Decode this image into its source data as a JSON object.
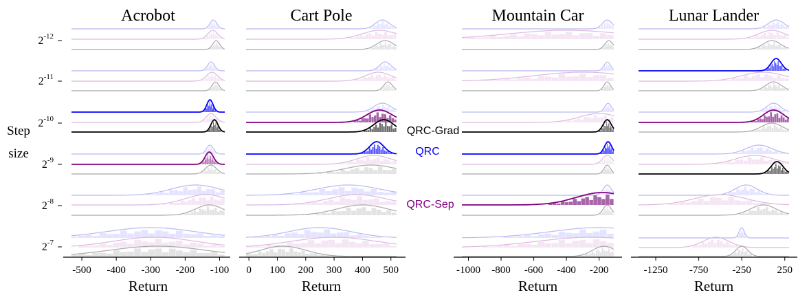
{
  "figure": {
    "ylabel_line1": "Step",
    "ylabel_line2": "size",
    "step_sizes": [
      {
        "base": "2",
        "exp": "-12",
        "value": 0.000244140625
      },
      {
        "base": "2",
        "exp": "-11",
        "value": 0.00048828125
      },
      {
        "base": "2",
        "exp": "-10",
        "value": 0.0009765625
      },
      {
        "base": "2",
        "exp": "-9",
        "value": 0.001953125
      },
      {
        "base": "2",
        "exp": "-8",
        "value": 0.00390625
      },
      {
        "base": "2",
        "exp": "-7",
        "value": 0.0078125
      }
    ],
    "colors": {
      "QRC-Grad": "#000000",
      "QRC": "#0000ff",
      "QRC-Sep": "#800080",
      "faint_QRC-Grad": "#a8a8a8",
      "faint_QRC": "#b8b8f2",
      "faint_QRC-Sep": "#ddb8dd",
      "bar_QRC-Grad": "#d7d7d7",
      "bar_QRC": "#d9d9ff",
      "bar_QRC-Sep": "#f0dcf0"
    },
    "legend": [
      {
        "label": "QRC-Grad",
        "color": "#000000"
      },
      {
        "label": "QRC",
        "color": "#0000ff"
      },
      {
        "label": "QRC-Sep",
        "color": "#800080"
      }
    ]
  },
  "chart_data": [
    {
      "type": "ridgeline",
      "title": "Acrobot",
      "xlabel": "Return",
      "xlim": [
        -530,
        -85
      ],
      "xticks": [
        -500,
        -400,
        -300,
        -200,
        -100
      ],
      "xtick_labels": [
        "-500",
        "-400",
        "-300",
        "-200",
        "-100"
      ],
      "series_order": [
        "QRC",
        "QRC-Sep",
        "QRC-Grad"
      ],
      "rows": [
        {
          "step": "2^-12",
          "best": null,
          "dist": {
            "QRC": {
              "peak": -118,
              "spread": 10
            },
            "QRC-Sep": {
              "peak": -120,
              "spread": 14
            },
            "QRC-Grad": {
              "peak": -110,
              "spread": 10
            }
          }
        },
        {
          "step": "2^-11",
          "best": null,
          "dist": {
            "QRC": {
              "peak": -125,
              "spread": 10
            },
            "QRC-Sep": {
              "peak": -122,
              "spread": 16
            },
            "QRC-Grad": {
              "peak": -112,
              "spread": 10
            }
          }
        },
        {
          "step": "2^-10",
          "best": [
            "QRC",
            "QRC-Grad"
          ],
          "dist": {
            "QRC": {
              "peak": -128,
              "spread": 9
            },
            "QRC-Sep": {
              "peak": -125,
              "spread": 14
            },
            "QRC-Grad": {
              "peak": -115,
              "spread": 10
            }
          }
        },
        {
          "step": "2^-9",
          "best": [
            "QRC-Sep"
          ],
          "dist": {
            "QRC": {
              "peak": -128,
              "spread": 10
            },
            "QRC-Sep": {
              "peak": -130,
              "spread": 12
            },
            "QRC-Grad": {
              "peak": -125,
              "spread": 16
            }
          }
        },
        {
          "step": "2^-8",
          "best": null,
          "dist": {
            "QRC": {
              "peak": -170,
              "spread": 70
            },
            "QRC-Sep": {
              "peak": -140,
              "spread": 60
            },
            "QRC-Grad": {
              "peak": -130,
              "spread": 40
            }
          }
        },
        {
          "step": "2^-7",
          "best": null,
          "dist": {
            "QRC": {
              "peak": -300,
              "spread": 130
            },
            "QRC-Sep": {
              "peak": -290,
              "spread": 120
            },
            "QRC-Grad": {
              "peak": -280,
              "spread": 140
            }
          }
        }
      ]
    },
    {
      "type": "ridgeline",
      "title": "Cart Pole",
      "xlabel": "Return",
      "xlim": [
        -10,
        520
      ],
      "xticks": [
        0,
        100,
        200,
        300,
        400,
        500
      ],
      "xtick_labels": [
        "0",
        "100",
        "200",
        "300",
        "400",
        "500"
      ],
      "series_order": [
        "QRC",
        "QRC-Sep",
        "QRC-Grad"
      ],
      "rows": [
        {
          "step": "2^-12",
          "best": null,
          "dist": {
            "QRC": {
              "peak": 470,
              "spread": 25
            },
            "QRC-Sep": {
              "peak": 460,
              "spread": 60
            },
            "QRC-Grad": {
              "peak": 480,
              "spread": 30
            }
          }
        },
        {
          "step": "2^-11",
          "best": null,
          "dist": {
            "QRC": {
              "peak": 480,
              "spread": 20
            },
            "QRC-Sep": {
              "peak": 455,
              "spread": 45
            },
            "QRC-Grad": {
              "peak": 490,
              "spread": 15
            }
          }
        },
        {
          "step": "2^-10",
          "best": [
            "QRC-Sep",
            "QRC-Grad"
          ],
          "dist": {
            "QRC": {
              "peak": 470,
              "spread": 30
            },
            "QRC-Sep": {
              "peak": 460,
              "spread": 45
            },
            "QRC-Grad": {
              "peak": 475,
              "spread": 35
            }
          }
        },
        {
          "step": "2^-9",
          "best": [
            "QRC"
          ],
          "dist": {
            "QRC": {
              "peak": 450,
              "spread": 25
            },
            "QRC-Sep": {
              "peak": 440,
              "spread": 60
            },
            "QRC-Grad": {
              "peak": 430,
              "spread": 90
            }
          }
        },
        {
          "step": "2^-8",
          "best": null,
          "dist": {
            "QRC": {
              "peak": 350,
              "spread": 110
            },
            "QRC-Sep": {
              "peak": 380,
              "spread": 100
            },
            "QRC-Grad": {
              "peak": 400,
              "spread": 90
            }
          }
        },
        {
          "step": "2^-7",
          "best": null,
          "dist": {
            "QRC": {
              "peak": 250,
              "spread": 110
            },
            "QRC-Sep": {
              "peak": 300,
              "spread": 150
            },
            "QRC-Grad": {
              "peak": 120,
              "spread": 80
            }
          }
        }
      ]
    },
    {
      "type": "ridgeline",
      "title": "Mountain Car",
      "xlabel": "Return",
      "xlim": [
        -1040,
        -110
      ],
      "xticks": [
        -1000,
        -800,
        -600,
        -400,
        -200
      ],
      "xtick_labels": [
        "-1000",
        "-800",
        "-600",
        "-400",
        "-200"
      ],
      "series_order": [
        "QRC",
        "QRC-Sep",
        "QRC-Grad"
      ],
      "rows": [
        {
          "step": "2^-12",
          "best": null,
          "dist": {
            "QRC": {
              "peak": -150,
              "spread": 30
            },
            "QRC-Sep": {
              "peak": -400,
              "spread": 350
            },
            "QRC-Grad": {
              "peak": -140,
              "spread": 25
            }
          }
        },
        {
          "step": "2^-11",
          "best": null,
          "dist": {
            "QRC": {
              "peak": -150,
              "spread": 20
            },
            "QRC-Sep": {
              "peak": -300,
              "spread": 300
            },
            "QRC-Grad": {
              "peak": -150,
              "spread": 20
            }
          }
        },
        {
          "step": "2^-10",
          "best": [
            "QRC-Grad"
          ],
          "dist": {
            "QRC": {
              "peak": -145,
              "spread": 20
            },
            "QRC-Sep": {
              "peak": -200,
              "spread": 120
            },
            "QRC-Grad": {
              "peak": -150,
              "spread": 25
            }
          }
        },
        {
          "step": "2^-9",
          "best": [
            "QRC"
          ],
          "dist": {
            "QRC": {
              "peak": -145,
              "spread": 22
            },
            "QRC-Sep": {
              "peak": -150,
              "spread": 30
            },
            "QRC-Grad": {
              "peak": -150,
              "spread": 20
            }
          }
        },
        {
          "step": "2^-8",
          "best": [
            "QRC-Sep"
          ],
          "dist": {
            "QRC": {
              "peak": -150,
              "spread": 25
            },
            "QRC-Sep": {
              "peak": -180,
              "spread": 160
            },
            "QRC-Grad": {
              "peak": -150,
              "spread": 25
            }
          }
        },
        {
          "step": "2^-7",
          "best": null,
          "dist": {
            "QRC": {
              "peak": -200,
              "spread": 300
            },
            "QRC-Sep": {
              "peak": -250,
              "spread": 330
            },
            "QRC-Grad": {
              "peak": -170,
              "spread": 70
            }
          }
        }
      ]
    },
    {
      "type": "ridgeline",
      "title": "Lunar Lander",
      "xlabel": "Return",
      "xlim": [
        -1450,
        300
      ],
      "xticks": [
        -1250,
        -750,
        -250,
        250
      ],
      "xtick_labels": [
        "-1250",
        "-750",
        "-250",
        "250"
      ],
      "series_order": [
        "QRC",
        "QRC-Sep",
        "QRC-Grad"
      ],
      "rows": [
        {
          "step": "2^-12",
          "best": null,
          "dist": {
            "QRC": {
              "peak": 150,
              "spread": 90
            },
            "QRC-Sep": {
              "peak": 100,
              "spread": 150
            },
            "QRC-Grad": {
              "peak": 100,
              "spread": 100
            }
          }
        },
        {
          "step": "2^-11",
          "best": [
            "QRC"
          ],
          "dist": {
            "QRC": {
              "peak": 150,
              "spread": 60
            },
            "QRC-Sep": {
              "peak": 0,
              "spread": 250
            },
            "QRC-Grad": {
              "peak": 120,
              "spread": 90
            }
          }
        },
        {
          "step": "2^-10",
          "best": [
            "QRC-Sep"
          ],
          "dist": {
            "QRC": {
              "peak": 120,
              "spread": 80
            },
            "QRC-Sep": {
              "peak": 120,
              "spread": 120
            },
            "QRC-Grad": {
              "peak": 100,
              "spread": 120
            }
          }
        },
        {
          "step": "2^-9",
          "best": [
            "QRC-Grad"
          ],
          "dist": {
            "QRC": {
              "peak": -50,
              "spread": 150
            },
            "QRC-Sep": {
              "peak": -100,
              "spread": 220
            },
            "QRC-Grad": {
              "peak": 160,
              "spread": 70
            }
          }
        },
        {
          "step": "2^-8",
          "best": null,
          "dist": {
            "QRC": {
              "peak": -200,
              "spread": 130
            },
            "QRC-Sep": {
              "peak": -500,
              "spread": 300
            },
            "QRC-Grad": {
              "peak": 0,
              "spread": 150
            }
          }
        },
        {
          "step": "2^-7",
          "best": null,
          "dist": {
            "QRC": {
              "peak": -250,
              "spread": 30
            },
            "QRC-Sep": {
              "peak": -550,
              "spread": 150
            },
            "QRC-Grad": {
              "peak": -250,
              "spread": 70
            }
          }
        }
      ]
    }
  ]
}
